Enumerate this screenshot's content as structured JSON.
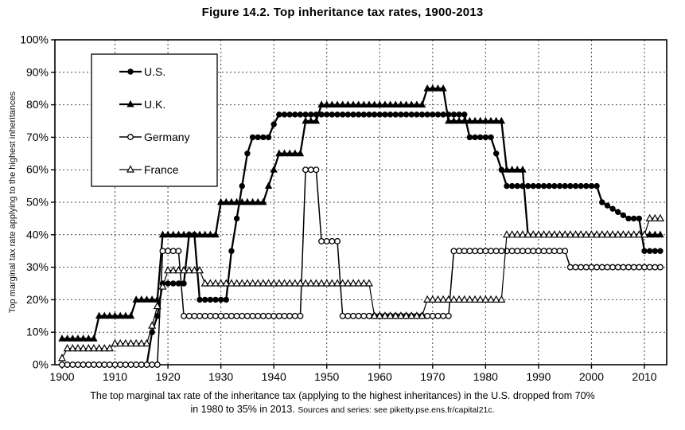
{
  "title": "Figure 14.2. Top inheritance tax rates, 1900-2013",
  "y_axis": {
    "label": "Top marginal tax rate applying to the highest inheritances",
    "tick_labels": [
      "0%",
      "10%",
      "20%",
      "30%",
      "40%",
      "50%",
      "60%",
      "70%",
      "80%",
      "90%",
      "100%"
    ]
  },
  "x_axis": {
    "tick_labels": [
      "1900",
      "1910",
      "1920",
      "1930",
      "1940",
      "1950",
      "1960",
      "1970",
      "1980",
      "1990",
      "2000",
      "2010"
    ]
  },
  "legend": {
    "items": [
      "U.S.",
      "U.K.",
      "Germany",
      "France"
    ]
  },
  "caption": {
    "line1": "The top marginal tax rate of the inheritance tax (applying to the highest inheritances) in the U.S. dropped from 70%",
    "line2": "in 1980 to 35% in 2013.",
    "sources": "Sources and series: see piketty.pse.ens.fr/capital21c."
  },
  "colors": {
    "ink": "#000000",
    "background": "#ffffff",
    "grid": "#444444"
  },
  "chart_data": {
    "type": "line",
    "title": "Figure 14.2. Top inheritance tax rates, 1900-2013",
    "xlabel": "",
    "ylabel": "Top marginal tax rate applying to the highest inheritances",
    "x_range": [
      1900,
      2013
    ],
    "ylim": [
      0,
      100
    ],
    "x_tick_step": 10,
    "y_tick_step": 10,
    "grid": "dashed",
    "legend_position": "top-left",
    "value_unit": "percent",
    "series": [
      {
        "name": "U.S.",
        "marker": "filled-circle",
        "steps": [
          [
            1900,
            1916,
            0
          ],
          [
            1917,
            1917,
            10
          ],
          [
            1918,
            1918,
            15
          ],
          [
            1919,
            1923,
            25
          ],
          [
            1924,
            1925,
            40
          ],
          [
            1926,
            1931,
            20
          ],
          [
            1932,
            1932,
            35
          ],
          [
            1933,
            1933,
            45
          ],
          [
            1934,
            1934,
            55
          ],
          [
            1935,
            1935,
            65
          ],
          [
            1936,
            1939,
            70
          ],
          [
            1940,
            1940,
            74
          ],
          [
            1941,
            1976,
            77
          ],
          [
            1977,
            1981,
            70
          ],
          [
            1982,
            1982,
            65
          ],
          [
            1983,
            1983,
            60
          ],
          [
            1984,
            2001,
            55
          ],
          [
            2002,
            2002,
            50
          ],
          [
            2003,
            2003,
            49
          ],
          [
            2004,
            2004,
            48
          ],
          [
            2005,
            2005,
            47
          ],
          [
            2006,
            2006,
            46
          ],
          [
            2007,
            2009,
            45
          ],
          [
            2010,
            2013,
            35
          ]
        ]
      },
      {
        "name": "U.K.",
        "marker": "filled-triangle",
        "steps": [
          [
            1900,
            1906,
            8
          ],
          [
            1907,
            1913,
            15
          ],
          [
            1914,
            1918,
            20
          ],
          [
            1919,
            1929,
            40
          ],
          [
            1930,
            1938,
            50
          ],
          [
            1939,
            1939,
            55
          ],
          [
            1940,
            1940,
            60
          ],
          [
            1941,
            1945,
            65
          ],
          [
            1946,
            1948,
            75
          ],
          [
            1949,
            1968,
            80
          ],
          [
            1969,
            1972,
            85
          ],
          [
            1973,
            1983,
            75
          ],
          [
            1984,
            1987,
            60
          ],
          [
            1988,
            2013,
            40
          ]
        ]
      },
      {
        "name": "Germany",
        "marker": "open-circle",
        "steps": [
          [
            1900,
            1918,
            0
          ],
          [
            1919,
            1922,
            35
          ],
          [
            1923,
            1945,
            15
          ],
          [
            1946,
            1948,
            60
          ],
          [
            1949,
            1952,
            38
          ],
          [
            1953,
            1973,
            15
          ],
          [
            1974,
            1995,
            35
          ],
          [
            1996,
            2013,
            30
          ]
        ]
      },
      {
        "name": "France",
        "marker": "open-triangle",
        "steps": [
          [
            1900,
            1900,
            2
          ],
          [
            1901,
            1909,
            5
          ],
          [
            1910,
            1916,
            6.5
          ],
          [
            1917,
            1917,
            12
          ],
          [
            1918,
            1918,
            18
          ],
          [
            1919,
            1919,
            24
          ],
          [
            1920,
            1926,
            29
          ],
          [
            1927,
            1958,
            25
          ],
          [
            1959,
            1968,
            15
          ],
          [
            1969,
            1983,
            20
          ],
          [
            1984,
            2010,
            40
          ],
          [
            2011,
            2013,
            45
          ]
        ]
      }
    ]
  }
}
